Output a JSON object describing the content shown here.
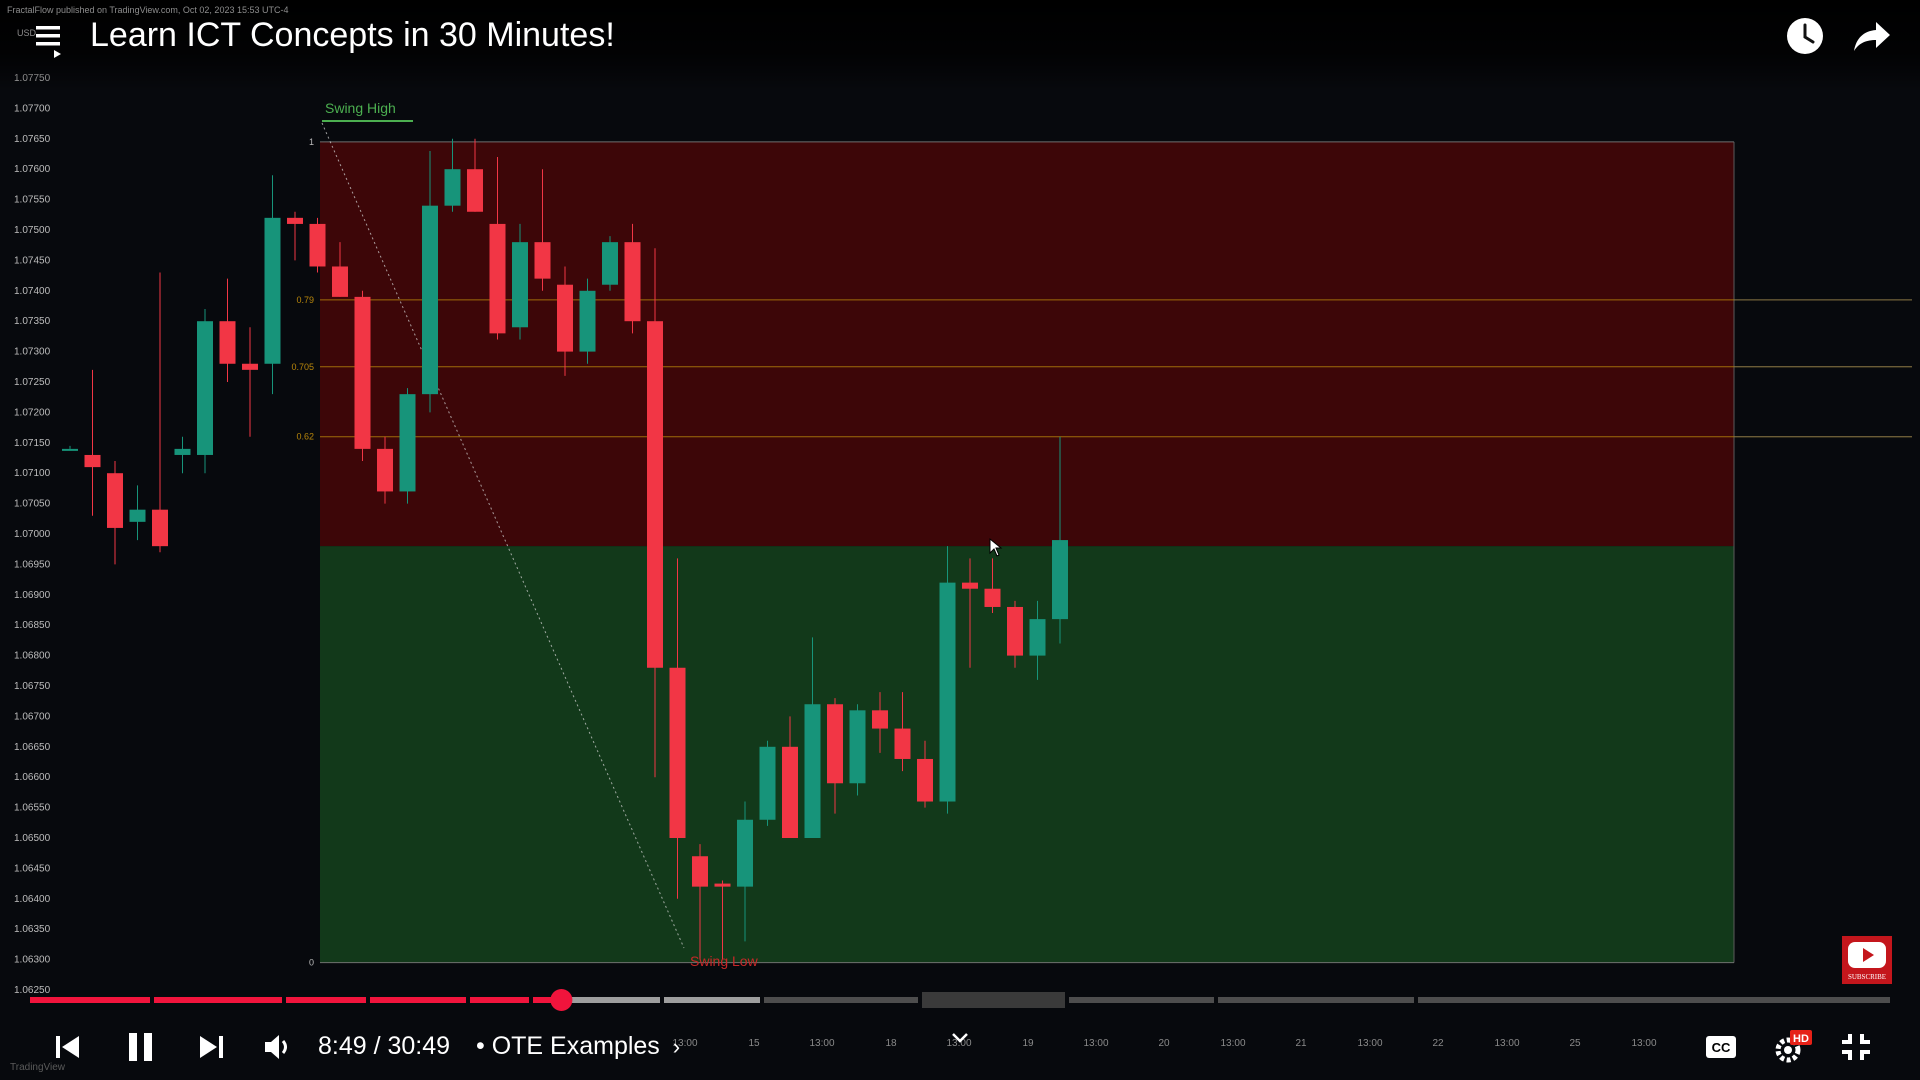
{
  "video": {
    "title": "Learn ICT Concepts in 30 Minutes!",
    "time": "8:49 / 30:49",
    "chapter": "• OTE Examples",
    "progress_fraction": 0.2857,
    "hd_badge": "HD",
    "subscribe_label": "SUBSCRIBE"
  },
  "tradingview": {
    "published_by": "FractalFlow published on TradingView.com, Oct 02, 2023 15:53 UTC-4",
    "symbol_fragment": "USD",
    "watermark": "TradingView"
  },
  "colors": {
    "up_candle": "#17947a",
    "down_candle": "#f23645",
    "premium_zone": "#3d0608",
    "discount_zone": "#12391a",
    "progress_played": "#f0143c",
    "swing_high": "#4caf50",
    "swing_low": "#c62828",
    "fib_line": "#b8860b"
  },
  "chart_data": {
    "type": "candlestick",
    "y_ticks": [
      "1.07750",
      "1.07700",
      "1.07650",
      "1.07600",
      "1.07550",
      "1.07500",
      "1.07450",
      "1.07400",
      "1.07350",
      "1.07300",
      "1.07250",
      "1.07200",
      "1.07150",
      "1.07100",
      "1.07050",
      "1.07000",
      "1.06950",
      "1.06900",
      "1.06850",
      "1.06800",
      "1.06750",
      "1.06700",
      "1.06650",
      "1.06600",
      "1.06550",
      "1.06500",
      "1.06450",
      "1.06400",
      "1.06350",
      "1.06300",
      "1.06250"
    ],
    "ylim": [
      1.0625,
      1.0775
    ],
    "x_ticks": [
      "13:00",
      "15",
      "13:00",
      "18",
      "13:00",
      "19",
      "13:00",
      "20",
      "13:00",
      "21",
      "13:00",
      "22",
      "13:00",
      "25",
      "13:00"
    ],
    "fib_levels": [
      {
        "label": "1",
        "price": 1.07645
      },
      {
        "label": "0.79",
        "price": 1.07385
      },
      {
        "label": "0.705",
        "price": 1.07275
      },
      {
        "label": "0.62",
        "price": 1.0716
      },
      {
        "label": "0",
        "price": 1.06295
      }
    ],
    "zones": {
      "premium": {
        "from": 1.0698,
        "to": 1.07645
      },
      "discount": {
        "from": 1.06295,
        "to": 1.0698
      }
    },
    "annotations": [
      "Swing High",
      "Swing Low"
    ],
    "candles": [
      {
        "o": 1.0714,
        "h": 1.07145,
        "l": 1.0714,
        "c": 1.0714
      },
      {
        "o": 1.0713,
        "h": 1.0727,
        "l": 1.0703,
        "c": 1.0711
      },
      {
        "o": 1.071,
        "h": 1.0712,
        "l": 1.0695,
        "c": 1.0701
      },
      {
        "o": 1.0702,
        "h": 1.0708,
        "l": 1.0699,
        "c": 1.0704
      },
      {
        "o": 1.0704,
        "h": 1.0743,
        "l": 1.0697,
        "c": 1.0698
      },
      {
        "o": 1.0713,
        "h": 1.0716,
        "l": 1.071,
        "c": 1.0714
      },
      {
        "o": 1.0713,
        "h": 1.0737,
        "l": 1.071,
        "c": 1.0735
      },
      {
        "o": 1.0735,
        "h": 1.0742,
        "l": 1.0725,
        "c": 1.0728
      },
      {
        "o": 1.0728,
        "h": 1.0734,
        "l": 1.0716,
        "c": 1.0727
      },
      {
        "o": 1.0728,
        "h": 1.0759,
        "l": 1.0723,
        "c": 1.0752
      },
      {
        "o": 1.0752,
        "h": 1.0753,
        "l": 1.0745,
        "c": 1.0751
      },
      {
        "o": 1.0751,
        "h": 1.0752,
        "l": 1.0743,
        "c": 1.0744
      },
      {
        "o": 1.0744,
        "h": 1.0748,
        "l": 1.0739,
        "c": 1.0739
      },
      {
        "o": 1.0739,
        "h": 1.074,
        "l": 1.0712,
        "c": 1.0714
      },
      {
        "o": 1.0714,
        "h": 1.0716,
        "l": 1.0705,
        "c": 1.0707
      },
      {
        "o": 1.0707,
        "h": 1.0724,
        "l": 1.0705,
        "c": 1.0723
      },
      {
        "o": 1.0723,
        "h": 1.0763,
        "l": 1.072,
        "c": 1.0754
      },
      {
        "o": 1.0754,
        "h": 1.0765,
        "l": 1.0753,
        "c": 1.076
      },
      {
        "o": 1.076,
        "h": 1.0765,
        "l": 1.0753,
        "c": 1.0753
      },
      {
        "o": 1.0751,
        "h": 1.0762,
        "l": 1.0732,
        "c": 1.0733
      },
      {
        "o": 1.0734,
        "h": 1.0751,
        "l": 1.0732,
        "c": 1.0748
      },
      {
        "o": 1.0748,
        "h": 1.076,
        "l": 1.074,
        "c": 1.0742
      },
      {
        "o": 1.0741,
        "h": 1.0744,
        "l": 1.0726,
        "c": 1.073
      },
      {
        "o": 1.073,
        "h": 1.0742,
        "l": 1.0728,
        "c": 1.074
      },
      {
        "o": 1.0741,
        "h": 1.0749,
        "l": 1.074,
        "c": 1.0748
      },
      {
        "o": 1.0748,
        "h": 1.0751,
        "l": 1.0733,
        "c": 1.0735
      },
      {
        "o": 1.0735,
        "h": 1.0747,
        "l": 1.066,
        "c": 1.0678
      },
      {
        "o": 1.0678,
        "h": 1.0696,
        "l": 1.064,
        "c": 1.065
      },
      {
        "o": 1.0647,
        "h": 1.0649,
        "l": 1.063,
        "c": 1.0642
      },
      {
        "o": 1.06425,
        "h": 1.0643,
        "l": 1.063,
        "c": 1.0642
      },
      {
        "o": 1.0642,
        "h": 1.0656,
        "l": 1.0633,
        "c": 1.0653
      },
      {
        "o": 1.0653,
        "h": 1.0666,
        "l": 1.0652,
        "c": 1.0665
      },
      {
        "o": 1.0665,
        "h": 1.067,
        "l": 1.065,
        "c": 1.065
      },
      {
        "o": 1.065,
        "h": 1.0683,
        "l": 1.065,
        "c": 1.0672
      },
      {
        "o": 1.0672,
        "h": 1.0673,
        "l": 1.0654,
        "c": 1.0659
      },
      {
        "o": 1.0659,
        "h": 1.0672,
        "l": 1.0657,
        "c": 1.0671
      },
      {
        "o": 1.0671,
        "h": 1.0674,
        "l": 1.0664,
        "c": 1.0668
      },
      {
        "o": 1.0668,
        "h": 1.0674,
        "l": 1.0661,
        "c": 1.0663
      },
      {
        "o": 1.0663,
        "h": 1.0666,
        "l": 1.0655,
        "c": 1.0656
      },
      {
        "o": 1.0656,
        "h": 1.0698,
        "l": 1.0654,
        "c": 1.0692
      },
      {
        "o": 1.0692,
        "h": 1.0696,
        "l": 1.0678,
        "c": 1.0691
      },
      {
        "o": 1.0691,
        "h": 1.0696,
        "l": 1.0687,
        "c": 1.0688
      },
      {
        "o": 1.0688,
        "h": 1.0689,
        "l": 1.0678,
        "c": 1.068
      },
      {
        "o": 1.068,
        "h": 1.0689,
        "l": 1.0676,
        "c": 1.0686
      },
      {
        "o": 1.0686,
        "h": 1.0716,
        "l": 1.0682,
        "c": 1.0699
      }
    ]
  }
}
